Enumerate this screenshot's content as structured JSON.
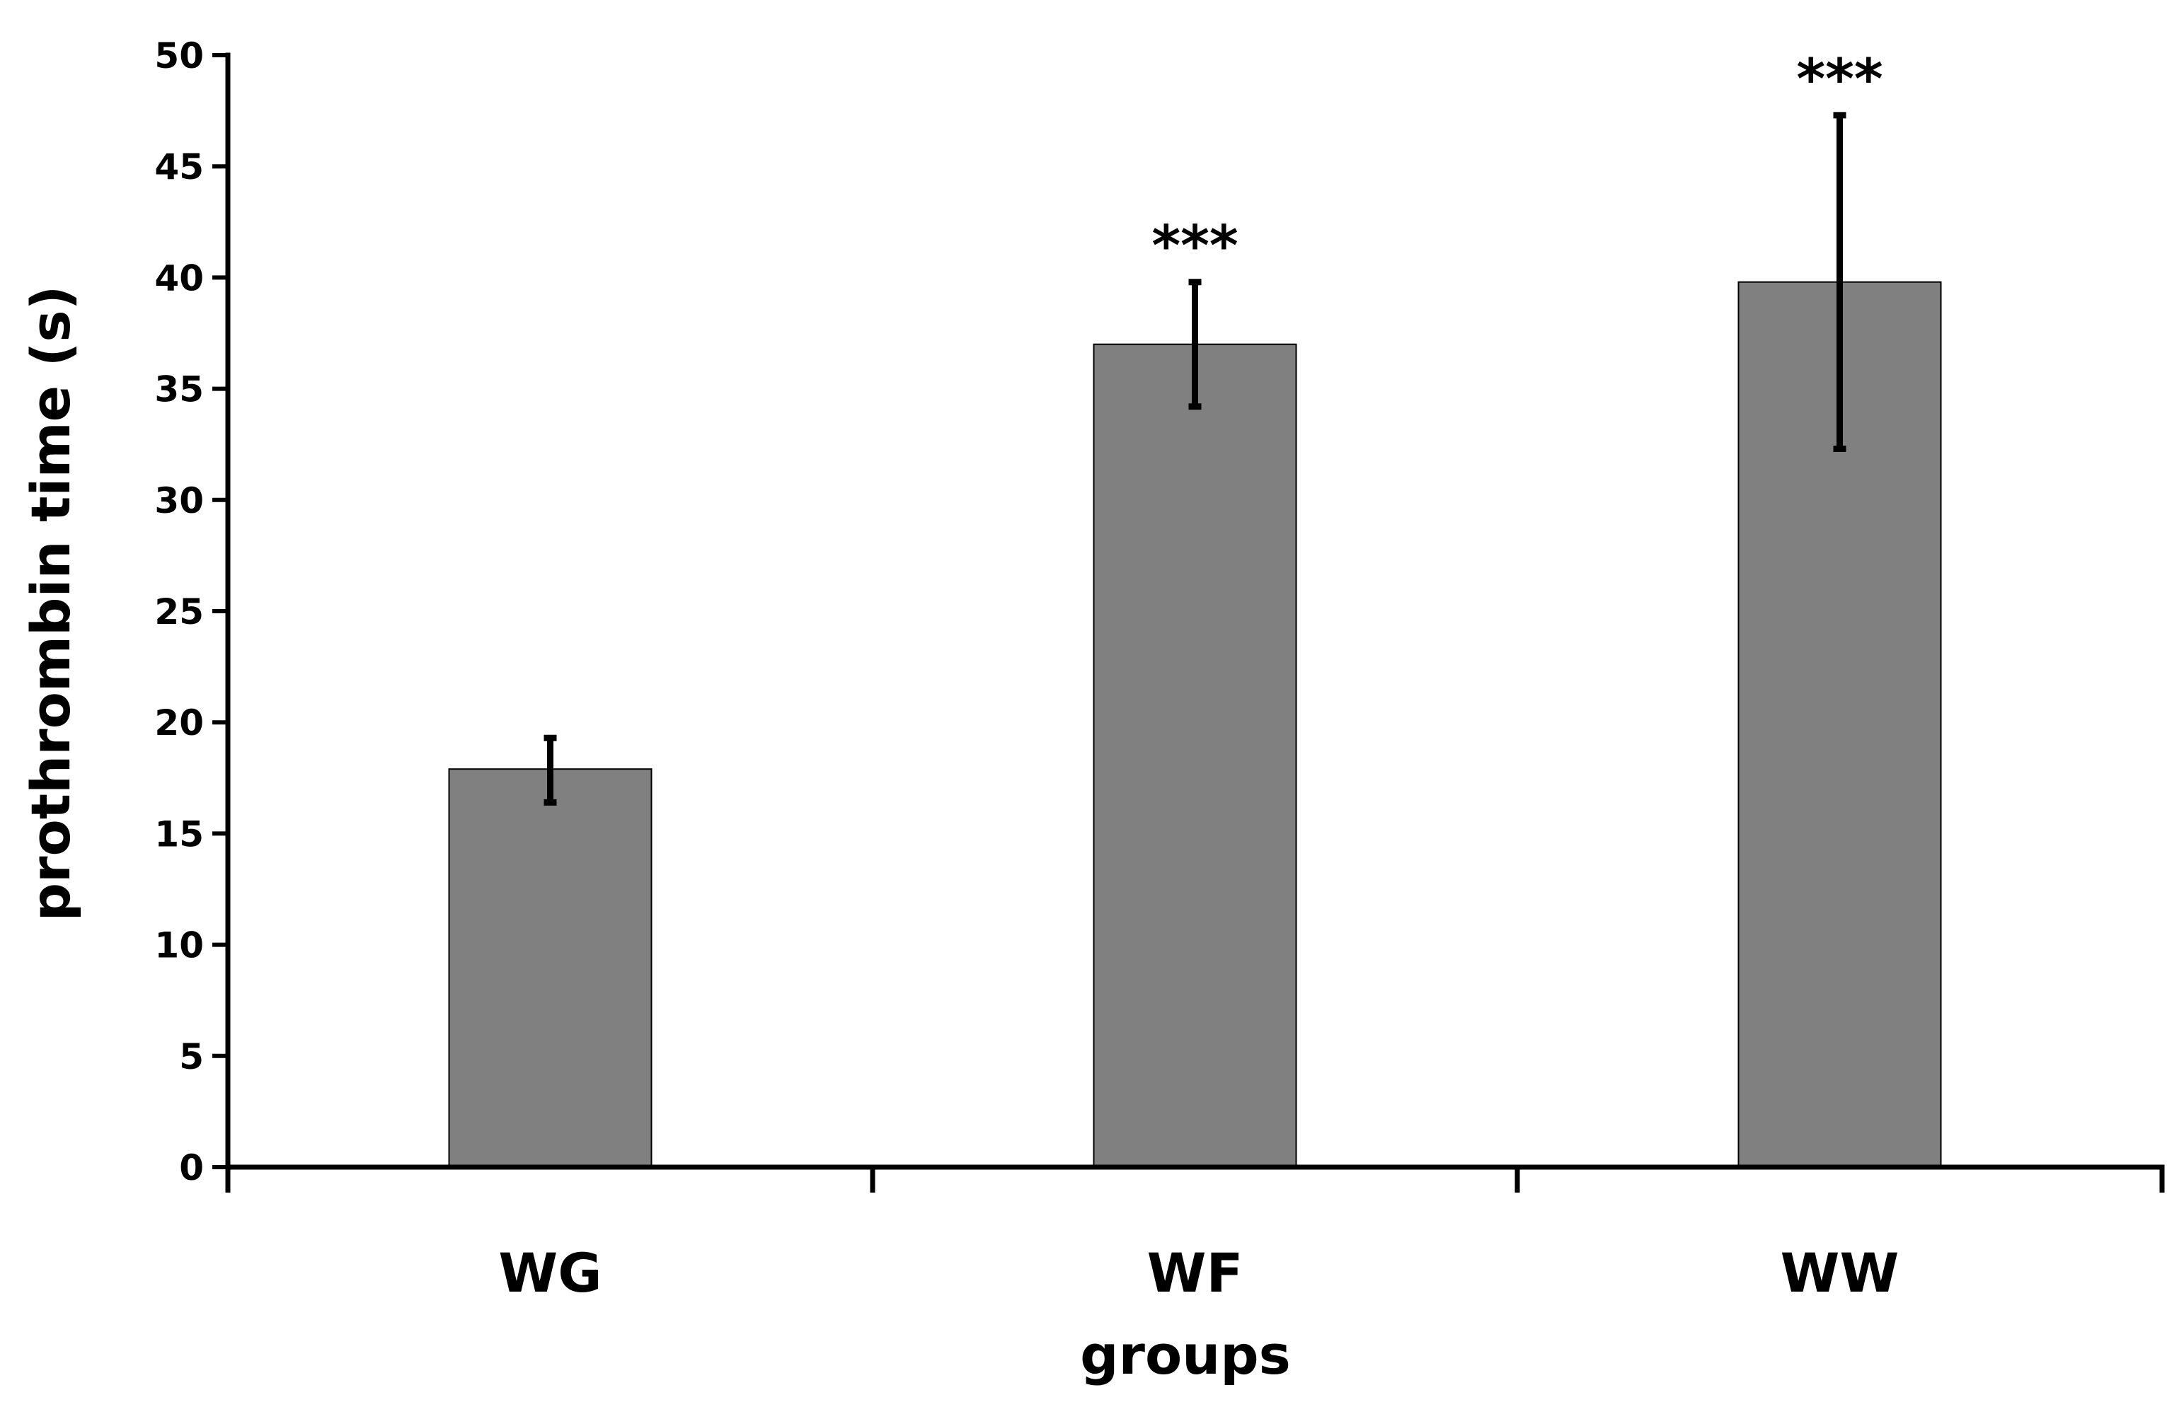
{
  "chart_data": {
    "type": "bar",
    "title": "",
    "xlabel": "groups",
    "ylabel": "prothrombin time (s)",
    "ylim": [
      0,
      50
    ],
    "yticks": [
      0,
      5,
      10,
      15,
      20,
      25,
      30,
      35,
      40,
      45,
      50
    ],
    "categories": [
      "WG",
      "WF",
      "WW"
    ],
    "values": [
      17.9,
      37.0,
      39.8
    ],
    "error_low": [
      16.4,
      34.2,
      32.3
    ],
    "error_high": [
      19.3,
      39.8,
      47.3
    ],
    "significance": [
      "",
      "***",
      "***"
    ],
    "grid": false,
    "legend": "none",
    "bar_color": "#808080",
    "axis_color": "#000000"
  }
}
